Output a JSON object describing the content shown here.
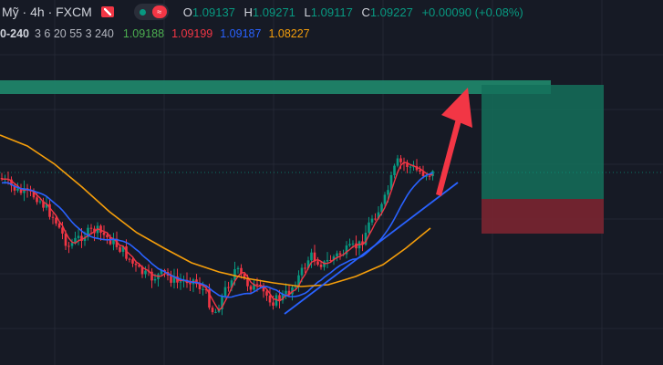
{
  "header": {
    "symbol_text": "Mỹ · 4h · FXCM",
    "ohlc": [
      {
        "key": "O",
        "value": "1.09137"
      },
      {
        "key": "H",
        "value": "1.09271"
      },
      {
        "key": "L",
        "value": "1.09117"
      },
      {
        "key": "C",
        "value": "1.09227"
      }
    ],
    "change": "+0.00090 (+0.08%)"
  },
  "indicator": {
    "name": "0-240",
    "params": "3 6 20 55 3 240",
    "values": [
      {
        "value": "1.09188",
        "color": "#4caf50"
      },
      {
        "value": "1.09199",
        "color": "#f23645"
      },
      {
        "value": "1.09187",
        "color": "#2962ff"
      },
      {
        "value": "1.08227",
        "color": "#f59e0b"
      }
    ]
  },
  "colors": {
    "background": "#161a25",
    "up": "#089981",
    "down": "#f23645",
    "ma_fast": "#f23645",
    "ma_mid": "#2962ff",
    "ma_slow": "#f59e0b",
    "zone_top": "#1f8a6d",
    "target_zone": "#14705a",
    "stop_zone": "#7a2531",
    "arrow": "#f23645",
    "trendline": "#2962ff"
  }
}
